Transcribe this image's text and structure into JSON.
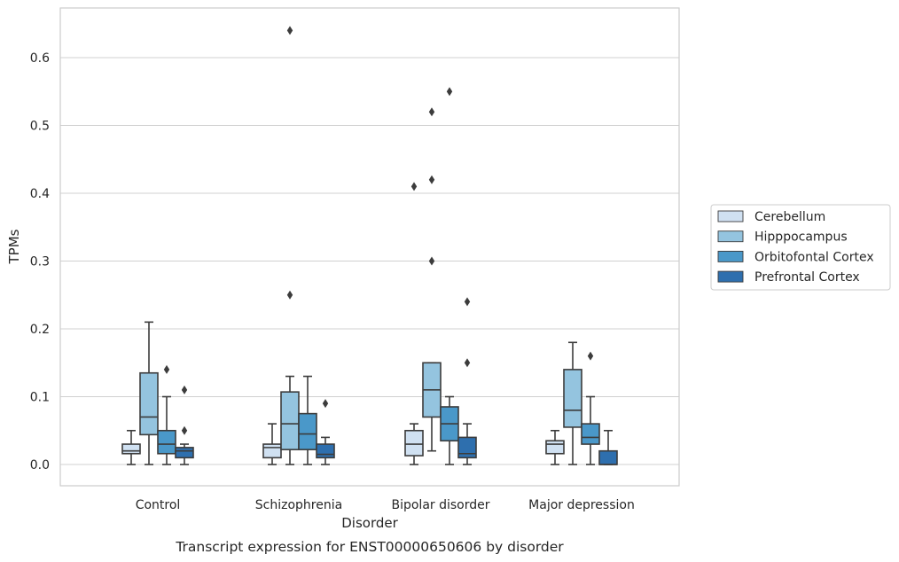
{
  "chart_data": {
    "type": "box",
    "caption": "Transcript expression for ENST00000650606 by disorder",
    "xlabel": "Disorder",
    "ylabel": "TPMs",
    "ylim": [
      -0.031,
      0.674
    ],
    "yticks": [
      "0.0",
      "0.1",
      "0.2",
      "0.3",
      "0.4",
      "0.5",
      "0.6"
    ],
    "grid": "horizontal",
    "legend_position": "right",
    "categories": [
      "Control",
      "Schizophrenia",
      "Bipolar disorder",
      "Major depression"
    ],
    "series": [
      {
        "name": "Cerebellum",
        "color": "#d0e1f2",
        "boxes": [
          {
            "min": 0.0,
            "q1": 0.016,
            "median": 0.02,
            "q3": 0.03,
            "max": 0.05,
            "outliers": []
          },
          {
            "min": 0.0,
            "q1": 0.01,
            "median": 0.025,
            "q3": 0.03,
            "max": 0.06,
            "outliers": []
          },
          {
            "min": 0.0,
            "q1": 0.013,
            "median": 0.03,
            "q3": 0.05,
            "max": 0.06,
            "outliers": [
              0.41
            ]
          },
          {
            "min": 0.0,
            "q1": 0.016,
            "median": 0.03,
            "q3": 0.035,
            "max": 0.05,
            "outliers": []
          }
        ]
      },
      {
        "name": "Hipppocampus",
        "color": "#94c4df",
        "boxes": [
          {
            "min": 0.0,
            "q1": 0.044,
            "median": 0.07,
            "q3": 0.135,
            "max": 0.21,
            "outliers": []
          },
          {
            "min": 0.0,
            "q1": 0.022,
            "median": 0.06,
            "q3": 0.107,
            "max": 0.13,
            "outliers": [
              0.64,
              0.25
            ]
          },
          {
            "min": 0.02,
            "q1": 0.07,
            "median": 0.11,
            "q3": 0.15,
            "max": 0.15,
            "outliers": [
              0.52,
              0.42,
              0.3
            ]
          },
          {
            "min": 0.0,
            "q1": 0.055,
            "median": 0.08,
            "q3": 0.14,
            "max": 0.18,
            "outliers": []
          }
        ]
      },
      {
        "name": "Orbitofontal Cortex",
        "color": "#4a98c9",
        "boxes": [
          {
            "min": 0.0,
            "q1": 0.016,
            "median": 0.03,
            "q3": 0.05,
            "max": 0.1,
            "outliers": [
              0.14
            ]
          },
          {
            "min": 0.0,
            "q1": 0.022,
            "median": 0.045,
            "q3": 0.075,
            "max": 0.13,
            "outliers": []
          },
          {
            "min": 0.0,
            "q1": 0.035,
            "median": 0.06,
            "q3": 0.085,
            "max": 0.1,
            "outliers": [
              0.55
            ]
          },
          {
            "min": 0.0,
            "q1": 0.03,
            "median": 0.04,
            "q3": 0.06,
            "max": 0.1,
            "outliers": [
              0.16
            ]
          }
        ]
      },
      {
        "name": "Prefrontal Cortex",
        "color": "#2e6fae",
        "boxes": [
          {
            "min": 0.0,
            "q1": 0.01,
            "median": 0.02,
            "q3": 0.025,
            "max": 0.03,
            "outliers": [
              0.11,
              0.05
            ]
          },
          {
            "min": 0.0,
            "q1": 0.01,
            "median": 0.015,
            "q3": 0.03,
            "max": 0.04,
            "outliers": [
              0.09
            ]
          },
          {
            "min": 0.0,
            "q1": 0.01,
            "median": 0.016,
            "q3": 0.04,
            "max": 0.06,
            "outliers": [
              0.24,
              0.15
            ]
          },
          {
            "min": 0.0,
            "q1": 0.0,
            "median": 0.0,
            "q3": 0.02,
            "max": 0.05,
            "outliers": []
          }
        ]
      }
    ]
  }
}
